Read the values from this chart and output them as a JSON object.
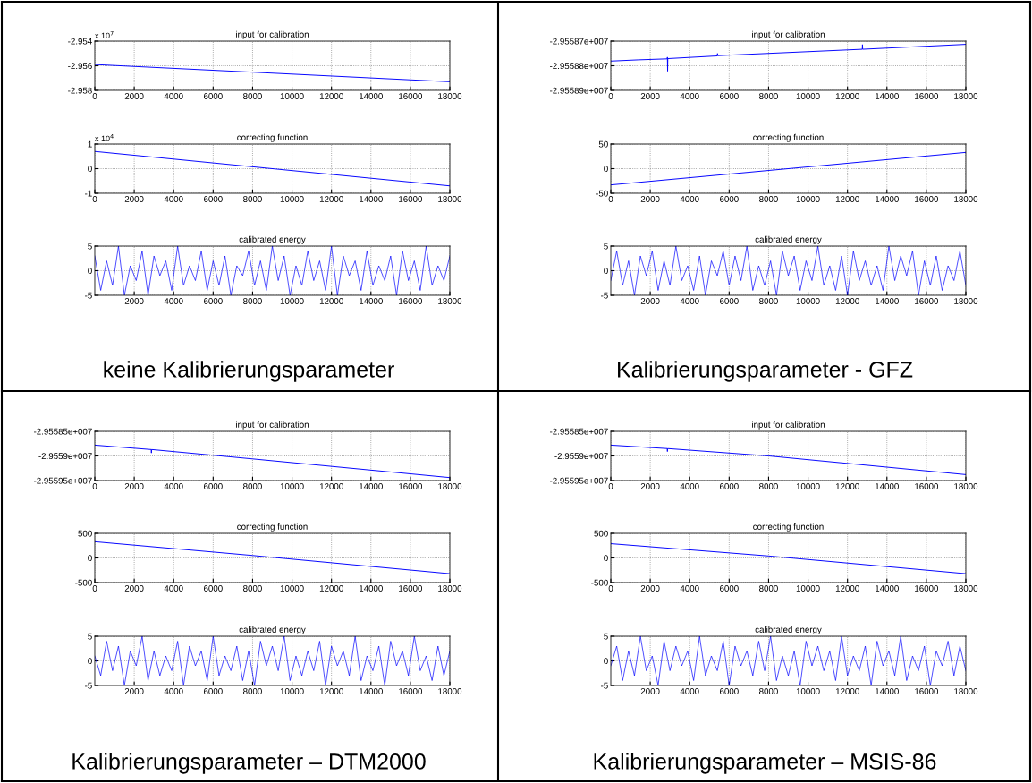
{
  "chart_data": [
    {
      "type": "line",
      "title": "input for calibration",
      "annotations": [
        "x 10$^{7}$"
      ],
      "x": [
        0,
        18000
      ],
      "series": [
        {
          "color": "#0000ff",
          "values": [
            -2.9559,
            -2.9573
          ]
        }
      ],
      "xlim": [
        0,
        18000
      ],
      "xticks": [
        0,
        2000,
        4000,
        6000,
        8000,
        10000,
        12000,
        14000,
        16000,
        18000
      ],
      "ylim": [
        -2.958,
        -2.954
      ],
      "yticks": [
        -2.958,
        -2.956,
        -2.954
      ],
      "grid": true
    },
    {
      "type": "line",
      "title": "correcting function",
      "annotations": [
        "x 10$^{4}$"
      ],
      "x": [
        0,
        18000
      ],
      "series": [
        {
          "color": "#0000ff",
          "values": [
            0.7,
            -0.7
          ]
        }
      ],
      "xlim": [
        0,
        18000
      ],
      "xticks": [
        0,
        2000,
        4000,
        6000,
        8000,
        10000,
        12000,
        14000,
        16000,
        18000
      ],
      "ylim": [
        -1,
        1
      ],
      "yticks": [
        -1,
        0,
        1
      ],
      "grid": true
    },
    {
      "type": "line",
      "title": "calibrated energy",
      "annotations": [
        "keine Kalibrierungsparameter"
      ],
      "x": [
        0,
        300,
        600,
        900,
        1200,
        1500,
        1800,
        2100,
        2400,
        2700,
        3000,
        3300,
        3600,
        3900,
        4200,
        4500,
        4800,
        5100,
        5400,
        5700,
        6000,
        6300,
        6600,
        6900,
        7200,
        7500,
        7800,
        8100,
        8400,
        8700,
        9000,
        9300,
        9600,
        9900,
        10200,
        10500,
        10800,
        11100,
        11400,
        11700,
        12000,
        12300,
        12600,
        12900,
        13200,
        13500,
        13800,
        14100,
        14400,
        14700,
        15000,
        15300,
        15600,
        15900,
        16200,
        16500,
        16800,
        17100,
        17400,
        17700,
        18000
      ],
      "series": [
        {
          "color": "#0000ff",
          "values": [
            3,
            -4,
            2,
            -3,
            5,
            -5,
            1,
            -2,
            4,
            -5,
            3,
            -1,
            2,
            -4,
            5,
            -3,
            1,
            -2,
            4,
            -4,
            2,
            -3,
            3,
            -5,
            1,
            -1,
            4,
            -3,
            2,
            -4,
            5,
            -2,
            3,
            -5,
            1,
            -3,
            4,
            -2,
            2,
            -4,
            5,
            -5,
            3,
            -1,
            2,
            -4,
            4,
            -3,
            1,
            -2,
            3,
            -5,
            4,
            -2,
            2,
            -4,
            5,
            -3,
            1,
            -2,
            3
          ]
        }
      ],
      "xlim": [
        0,
        18000
      ],
      "xticks": [
        2000,
        4000,
        6000,
        8000,
        10000,
        12000,
        14000,
        16000,
        18000
      ],
      "ylim": [
        -5,
        5
      ],
      "yticks": [
        -5,
        0,
        5
      ],
      "grid": true
    },
    {
      "type": "line",
      "title": "input for calibration",
      "x": [
        0,
        1400,
        2860,
        2870,
        2880,
        2890,
        5400,
        5410,
        5420,
        12750,
        12760,
        12770,
        18000
      ],
      "series": [
        {
          "color": "#0000ff",
          "values": [
            -29558781,
            -29558776,
            -29558772,
            -29558765,
            -29558822,
            -29558771,
            -29558760,
            -29558750,
            -29558759,
            -29558733,
            -29558714,
            -29558733,
            -29558713
          ]
        }
      ],
      "xlim": [
        0,
        18000
      ],
      "xticks": [
        0,
        2000,
        4000,
        6000,
        8000,
        10000,
        12000,
        14000,
        16000,
        18000
      ],
      "ylim": [
        -29558900,
        -29558700
      ],
      "yticks": [
        {
          "value": -29558900,
          "label": "-2.95589e+007"
        },
        {
          "value": -29558800,
          "label": "-2.95588e+007"
        },
        {
          "value": -29558700,
          "label": "-2.95587e+007"
        }
      ],
      "grid": true
    },
    {
      "type": "line",
      "title": "correcting function",
      "x": [
        0,
        18000
      ],
      "series": [
        {
          "color": "#0000ff",
          "values": [
            -33,
            33
          ]
        }
      ],
      "xlim": [
        0,
        18000
      ],
      "xticks": [
        0,
        2000,
        4000,
        6000,
        8000,
        10000,
        12000,
        14000,
        16000,
        18000
      ],
      "ylim": [
        -50,
        50
      ],
      "yticks": [
        -50,
        0,
        50
      ],
      "grid": true
    },
    {
      "type": "line",
      "title": "calibrated energy",
      "annotations": [
        "Kalibrierungsparameter - GFZ"
      ],
      "x": [
        0,
        300,
        600,
        900,
        1200,
        1500,
        1800,
        2100,
        2400,
        2700,
        3000,
        3300,
        3600,
        3900,
        4200,
        4500,
        4800,
        5100,
        5400,
        5700,
        6000,
        6300,
        6600,
        6900,
        7200,
        7500,
        7800,
        8100,
        8400,
        8700,
        9000,
        9300,
        9600,
        9900,
        10200,
        10500,
        10800,
        11100,
        11400,
        11700,
        12000,
        12300,
        12600,
        12900,
        13200,
        13500,
        13800,
        14100,
        14400,
        14700,
        15000,
        15300,
        15600,
        15900,
        16200,
        16500,
        16800,
        17100,
        17400,
        17700,
        18000
      ],
      "series": [
        {
          "color": "#0000ff",
          "values": [
            -2,
            4,
            -3,
            2,
            -5,
            3,
            -1,
            4,
            -4,
            2,
            -3,
            5,
            -2,
            1,
            -4,
            3,
            -5,
            2,
            -1,
            4,
            -3,
            3,
            -2,
            5,
            -4,
            1,
            -3,
            2,
            -5,
            4,
            -1,
            3,
            -4,
            2,
            -2,
            5,
            -3,
            1,
            -4,
            3,
            -5,
            4,
            -2,
            2,
            -3,
            1,
            -4,
            5,
            -2,
            3,
            -1,
            4,
            -5,
            2,
            -3,
            3,
            -4,
            1,
            -2,
            4,
            -3
          ]
        }
      ],
      "xlim": [
        0,
        18000
      ],
      "xticks": [
        2000,
        4000,
        6000,
        8000,
        10000,
        12000,
        14000,
        16000,
        18000
      ],
      "ylim": [
        -5,
        5
      ],
      "yticks": [
        -5,
        0,
        5
      ],
      "grid": true
    },
    {
      "type": "line",
      "title": "input for calibration",
      "x": [
        0,
        2860,
        2870,
        2880,
        8000,
        18000
      ],
      "series": [
        {
          "color": "#0000ff",
          "values": [
            -29558780,
            -29558870,
            -29558940,
            -29558870,
            -29559060,
            -29559440
          ]
        }
      ],
      "xlim": [
        0,
        18000
      ],
      "xticks": [
        0,
        2000,
        4000,
        6000,
        8000,
        10000,
        12000,
        14000,
        16000,
        18000
      ],
      "ylim": [
        -29559500,
        -29558500
      ],
      "yticks": [
        {
          "value": -29559500,
          "label": "-2.95595e+007"
        },
        {
          "value": -29559000,
          "label": "-2.9559e+007"
        },
        {
          "value": -29558500,
          "label": "-2.95585e+007"
        }
      ],
      "grid": true
    },
    {
      "type": "line",
      "title": "correcting function",
      "x": [
        0,
        8000,
        18000
      ],
      "series": [
        {
          "color": "#0000ff",
          "values": [
            330,
            50,
            -320
          ]
        }
      ],
      "xlim": [
        0,
        18000
      ],
      "xticks": [
        0,
        2000,
        4000,
        6000,
        8000,
        10000,
        12000,
        14000,
        16000,
        18000
      ],
      "ylim": [
        -500,
        500
      ],
      "yticks": [
        -500,
        0,
        500
      ],
      "grid": true
    },
    {
      "type": "line",
      "title": "calibrated energy",
      "annotations": [
        "Kalibrierungsparameter – DTM2000"
      ],
      "x": [
        0,
        300,
        600,
        900,
        1200,
        1500,
        1800,
        2100,
        2400,
        2700,
        3000,
        3300,
        3600,
        3900,
        4200,
        4500,
        4800,
        5100,
        5400,
        5700,
        6000,
        6300,
        6600,
        6900,
        7200,
        7500,
        7800,
        8100,
        8400,
        8700,
        9000,
        9300,
        9600,
        9900,
        10200,
        10500,
        10800,
        11100,
        11400,
        11700,
        12000,
        12300,
        12600,
        12900,
        13200,
        13500,
        13800,
        14100,
        14400,
        14700,
        15000,
        15300,
        15600,
        15900,
        16200,
        16500,
        16800,
        17100,
        17400,
        17700,
        18000
      ],
      "series": [
        {
          "color": "#0000ff",
          "values": [
            1,
            -3,
            4,
            -2,
            3,
            -5,
            2,
            -1,
            5,
            -4,
            2,
            -3,
            1,
            -2,
            4,
            -5,
            3,
            -1,
            2,
            -4,
            5,
            -3,
            1,
            -2,
            3,
            -4,
            2,
            -5,
            4,
            -1,
            3,
            -2,
            5,
            -4,
            1,
            -3,
            2,
            -2,
            4,
            -5,
            3,
            -1,
            2,
            -3,
            5,
            -4,
            1,
            -2,
            3,
            -5,
            4,
            -1,
            2,
            -3,
            5,
            -2,
            1,
            -4,
            3,
            -3,
            2
          ]
        }
      ],
      "xlim": [
        0,
        18000
      ],
      "xticks": [
        2000,
        4000,
        6000,
        8000,
        10000,
        12000,
        14000,
        16000,
        18000
      ],
      "ylim": [
        -5,
        5
      ],
      "yticks": [
        -5,
        0,
        5
      ],
      "grid": true
    },
    {
      "type": "line",
      "title": "input for calibration",
      "x": [
        0,
        2860,
        2870,
        2880,
        8000,
        18000
      ],
      "series": [
        {
          "color": "#0000ff",
          "values": [
            -29558780,
            -29558850,
            -29558910,
            -29558850,
            -29559000,
            -29559380
          ]
        }
      ],
      "xlim": [
        0,
        18000
      ],
      "xticks": [
        0,
        2000,
        4000,
        6000,
        8000,
        10000,
        12000,
        14000,
        16000,
        18000
      ],
      "ylim": [
        -29559500,
        -29558500
      ],
      "yticks": [
        {
          "value": -29559500,
          "label": "-2.95595e+007"
        },
        {
          "value": -29559000,
          "label": "-2.9559e+007"
        },
        {
          "value": -29558500,
          "label": "-2.95585e+007"
        }
      ],
      "grid": true
    },
    {
      "type": "line",
      "title": "correcting function",
      "x": [
        0,
        8000,
        18000
      ],
      "series": [
        {
          "color": "#0000ff",
          "values": [
            290,
            40,
            -320
          ]
        }
      ],
      "xlim": [
        0,
        18000
      ],
      "xticks": [
        0,
        2000,
        4000,
        6000,
        8000,
        10000,
        12000,
        14000,
        16000,
        18000
      ],
      "ylim": [
        -500,
        500
      ],
      "yticks": [
        -500,
        0,
        500
      ],
      "grid": true
    },
    {
      "type": "line",
      "title": "calibrated energy",
      "annotations": [
        "Kalibrierungsparameter – MSIS-86"
      ],
      "x": [
        0,
        300,
        600,
        900,
        1200,
        1500,
        1800,
        2100,
        2400,
        2700,
        3000,
        3300,
        3600,
        3900,
        4200,
        4500,
        4800,
        5100,
        5400,
        5700,
        6000,
        6300,
        6600,
        6900,
        7200,
        7500,
        7800,
        8100,
        8400,
        8700,
        9000,
        9300,
        9600,
        9900,
        10200,
        10500,
        10800,
        11100,
        11400,
        11700,
        12000,
        12300,
        12600,
        12900,
        13200,
        13500,
        13800,
        14100,
        14400,
        14700,
        15000,
        15300,
        15600,
        15900,
        16200,
        16500,
        16800,
        17100,
        17400,
        17700,
        18000
      ],
      "series": [
        {
          "color": "#0000ff",
          "values": [
            -1,
            3,
            -4,
            2,
            -3,
            5,
            -2,
            1,
            -5,
            4,
            -2,
            3,
            -1,
            2,
            -4,
            5,
            -3,
            1,
            -2,
            4,
            -5,
            3,
            -1,
            2,
            -3,
            4,
            -2,
            5,
            -4,
            1,
            -3,
            2,
            -5,
            4,
            -1,
            3,
            -2,
            2,
            -4,
            5,
            -3,
            1,
            -2,
            3,
            -5,
            4,
            -1,
            2,
            -3,
            5,
            -4,
            1,
            -2,
            3,
            -5,
            2,
            -1,
            4,
            -3,
            3,
            -2
          ]
        }
      ],
      "xlim": [
        0,
        18000
      ],
      "xticks": [
        2000,
        4000,
        6000,
        8000,
        10000,
        12000,
        14000,
        16000,
        18000
      ],
      "ylim": [
        -5,
        5
      ],
      "yticks": [
        -5,
        0,
        5
      ],
      "grid": true
    }
  ]
}
